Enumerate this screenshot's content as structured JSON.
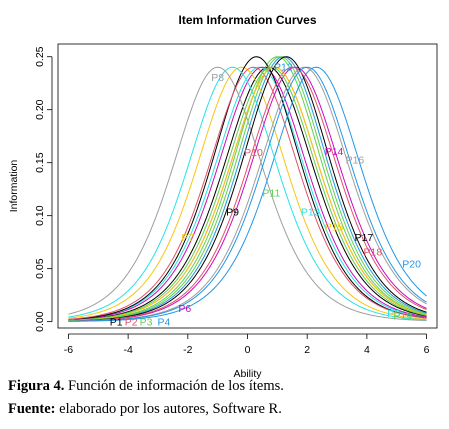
{
  "chart_data": {
    "type": "line",
    "title": "Item Information Curves",
    "xlabel": "Ability",
    "ylabel": "Information",
    "xlim": [
      -6,
      6
    ],
    "ylim": [
      0,
      0.25
    ],
    "xticks": [
      -6,
      -4,
      -2,
      0,
      2,
      4,
      6
    ],
    "yticks": [
      0.0,
      0.05,
      0.1,
      0.15,
      0.2,
      0.25
    ],
    "xtick_labels": [
      "-6",
      "-4",
      "-2",
      "0",
      "2",
      "4",
      "6"
    ],
    "ytick_labels": [
      "0.00",
      "0.05",
      "0.10",
      "0.15",
      "0.20",
      "0.25"
    ],
    "grid": false,
    "series": [
      {
        "name": "P1",
        "difficulty": 0.7,
        "discrimination": 0.98,
        "color": "#000000",
        "label_at": [
          -4.4,
          0.0
        ]
      },
      {
        "name": "P2",
        "difficulty": 0.9,
        "discrimination": 0.98,
        "color": "#df536b",
        "label_at": [
          -3.9,
          0.0
        ]
      },
      {
        "name": "P3",
        "difficulty": 1.0,
        "discrimination": 1.0,
        "color": "#61d04f",
        "label_at": [
          -3.4,
          0.0
        ]
      },
      {
        "name": "P4",
        "difficulty": 1.2,
        "discrimination": 1.0,
        "color": "#2297e6",
        "label_at": [
          -2.8,
          0.0
        ]
      },
      {
        "name": "P5",
        "difficulty": 0.4,
        "discrimination": 0.98,
        "color": "#28e2e5",
        "label_at": [
          4.9,
          0.008
        ]
      },
      {
        "name": "P6",
        "difficulty": 0.5,
        "discrimination": 0.98,
        "color": "#cd0bbc",
        "label_at": [
          -2.1,
          0.013
        ]
      },
      {
        "name": "P7",
        "difficulty": -0.2,
        "discrimination": 0.98,
        "color": "#f5c710",
        "label_at": [
          -2.0,
          0.08
        ]
      },
      {
        "name": "P8",
        "difficulty": -1.0,
        "discrimination": 0.98,
        "color": "#9e9e9e",
        "label_at": [
          -1.0,
          0.231
        ]
      },
      {
        "name": "P9",
        "difficulty": 0.3,
        "discrimination": 1.0,
        "color": "#000000",
        "label_at": [
          -0.5,
          0.104
        ]
      },
      {
        "name": "P10",
        "difficulty": 0.2,
        "discrimination": 0.98,
        "color": "#df536b",
        "label_at": [
          0.2,
          0.16
        ]
      },
      {
        "name": "P11",
        "difficulty": 1.1,
        "discrimination": 1.0,
        "color": "#61d04f",
        "label_at": [
          0.8,
          0.122
        ]
      },
      {
        "name": "P12",
        "difficulty": 2.3,
        "discrimination": 0.98,
        "color": "#2297e6",
        "label_at": [
          1.2,
          0.241
        ]
      },
      {
        "name": "P13",
        "difficulty": -0.5,
        "discrimination": 0.98,
        "color": "#28e2e5",
        "label_at": [
          2.1,
          0.104
        ]
      },
      {
        "name": "P14",
        "difficulty": 1.6,
        "discrimination": 0.98,
        "color": "#cd0bbc",
        "label_at": [
          2.9,
          0.161
        ]
      },
      {
        "name": "P15",
        "difficulty": 0.9,
        "discrimination": 0.98,
        "color": "#f5c710",
        "label_at": [
          2.9,
          0.09
        ]
      },
      {
        "name": "P16",
        "difficulty": 1.9,
        "discrimination": 0.98,
        "color": "#9e9e9e",
        "label_at": [
          3.6,
          0.153
        ]
      },
      {
        "name": "P17",
        "difficulty": 1.3,
        "discrimination": 1.0,
        "color": "#000000",
        "label_at": [
          3.9,
          0.08
        ]
      },
      {
        "name": "P18",
        "difficulty": 1.5,
        "discrimination": 0.98,
        "color": "#df536b",
        "label_at": [
          4.2,
          0.066
        ]
      },
      {
        "name": "P19",
        "difficulty": 0.8,
        "discrimination": 0.98,
        "color": "#61d04f",
        "label_at": [
          5.2,
          0.006
        ]
      },
      {
        "name": "P20",
        "difficulty": 2.0,
        "discrimination": 0.98,
        "color": "#2297e6",
        "label_at": [
          5.5,
          0.055
        ]
      }
    ]
  },
  "caption": {
    "line1_bold": "Figura 4.",
    "line1_text": " Función de información de los ítems.",
    "line2_bold": "Fuente:",
    "line2_text": " elaborado por los autores, Software R."
  }
}
